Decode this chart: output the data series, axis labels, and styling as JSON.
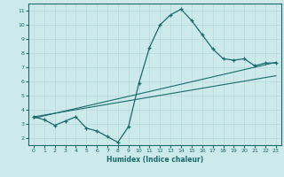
{
  "title": "",
  "xlabel": "Humidex (Indice chaleur)",
  "ylabel": "",
  "bg_color": "#cce9ec",
  "grid_color": "#b8d8dc",
  "line_color": "#1a6b6b",
  "tick_color": "#1a6b6b",
  "spine_color": "#1a6b6b",
  "xlim": [
    -0.5,
    23.5
  ],
  "ylim": [
    1.5,
    11.5
  ],
  "xticks": [
    0,
    1,
    2,
    3,
    4,
    5,
    6,
    7,
    8,
    9,
    10,
    11,
    12,
    13,
    14,
    15,
    16,
    17,
    18,
    19,
    20,
    21,
    22,
    23
  ],
  "yticks": [
    2,
    3,
    4,
    5,
    6,
    7,
    8,
    9,
    10,
    11
  ],
  "main_line_x": [
    0,
    1,
    2,
    3,
    4,
    5,
    6,
    7,
    8,
    9,
    10,
    11,
    12,
    13,
    14,
    15,
    16,
    17,
    18,
    19,
    20,
    21,
    22,
    23
  ],
  "main_line_y": [
    3.5,
    3.3,
    2.9,
    3.2,
    3.5,
    2.7,
    2.5,
    2.1,
    1.7,
    2.8,
    5.9,
    8.4,
    10.0,
    10.7,
    11.1,
    10.3,
    9.3,
    8.3,
    7.6,
    7.5,
    7.6,
    7.1,
    7.3,
    7.3
  ],
  "trend_line_x": [
    0,
    23
  ],
  "trend_line_y": [
    3.4,
    7.35
  ],
  "trend_line2_x": [
    0,
    23
  ],
  "trend_line2_y": [
    3.5,
    6.4
  ]
}
